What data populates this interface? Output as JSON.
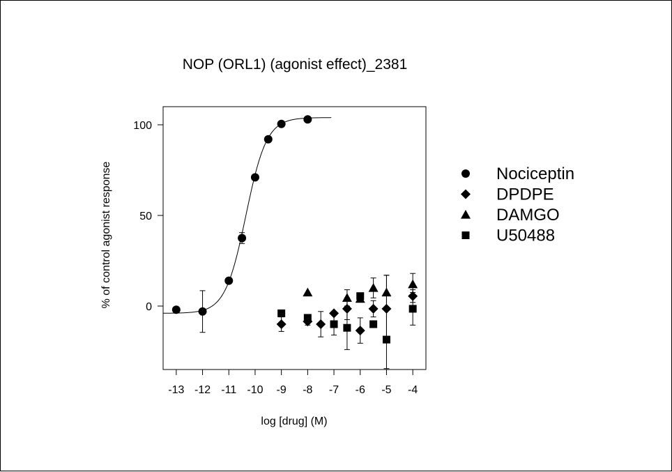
{
  "chart_data": {
    "type": "scatter",
    "title": "NOP (ORL1) (agonist effect)_2381",
    "xlabel": "log [drug]  (M)",
    "ylabel": "% of control agonist response",
    "xlim": [
      -13.5,
      -3.5
    ],
    "ylim": [
      -35,
      110
    ],
    "xticks": [
      -13,
      -12,
      -11,
      -10,
      -9,
      -8,
      -7,
      -6,
      -5,
      -4
    ],
    "yticks": [
      0,
      50,
      100
    ],
    "grid": false,
    "legend_position": "right",
    "fit_curve": {
      "series": "Nociceptin",
      "bottom": -4,
      "top": 104,
      "logEC50": -10.35,
      "hill": 1.1,
      "x_range": [
        -13.5,
        -7.1
      ]
    },
    "series": [
      {
        "name": "Nociceptin",
        "marker": "circle",
        "points": [
          {
            "x": -13,
            "y": -2,
            "err": 0
          },
          {
            "x": -12,
            "y": -3,
            "err": 11.5
          },
          {
            "x": -11,
            "y": 14,
            "err": 0
          },
          {
            "x": -10.5,
            "y": 37.5,
            "err": 3
          },
          {
            "x": -10,
            "y": 71,
            "err": 0
          },
          {
            "x": -9.5,
            "y": 92,
            "err": 0
          },
          {
            "x": -9,
            "y": 100.5,
            "err": 0
          },
          {
            "x": -8,
            "y": 103,
            "err": 0
          }
        ]
      },
      {
        "name": "DPDPE",
        "marker": "diamond",
        "points": [
          {
            "x": -9,
            "y": -10,
            "err": 4
          },
          {
            "x": -8,
            "y": -8.5,
            "err": 2
          },
          {
            "x": -7.5,
            "y": -10,
            "err": 7
          },
          {
            "x": -7,
            "y": -4,
            "err": 0
          },
          {
            "x": -6.5,
            "y": -1.5,
            "err": 6
          },
          {
            "x": -6,
            "y": -13.5,
            "err": 7
          },
          {
            "x": -5.5,
            "y": -1.5,
            "err": 4.5
          },
          {
            "x": -5,
            "y": -1.5,
            "err": 18.5
          },
          {
            "x": -4,
            "y": 5.5,
            "err": 3.5
          }
        ]
      },
      {
        "name": "DAMGO",
        "marker": "triangle",
        "points": [
          {
            "x": -8,
            "y": 7.5,
            "err": 0
          },
          {
            "x": -6.5,
            "y": 4.5,
            "err": 4.5
          },
          {
            "x": -6,
            "y": 4,
            "err": 0
          },
          {
            "x": -5.5,
            "y": 10,
            "err": 5.5
          },
          {
            "x": -5,
            "y": 7.5,
            "err": 9.5
          },
          {
            "x": -4,
            "y": 12,
            "err": 6
          }
        ]
      },
      {
        "name": "U50488",
        "marker": "square",
        "points": [
          {
            "x": -9,
            "y": -4,
            "err": 0
          },
          {
            "x": -8,
            "y": -6.5,
            "err": 0
          },
          {
            "x": -7,
            "y": -10,
            "err": 6
          },
          {
            "x": -6.5,
            "y": -12,
            "err": 12
          },
          {
            "x": -6,
            "y": 5.5,
            "err": 0
          },
          {
            "x": -5.5,
            "y": -10,
            "err": 0
          },
          {
            "x": -5,
            "y": -18.5,
            "err": 16
          },
          {
            "x": -4,
            "y": -1.5,
            "err": 9
          }
        ]
      }
    ]
  }
}
